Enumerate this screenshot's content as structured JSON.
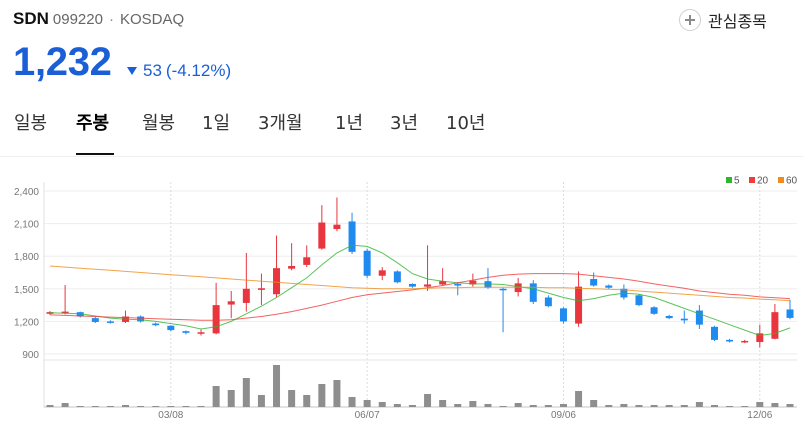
{
  "stock": {
    "name": "SDN",
    "code": "099220",
    "separator": "·",
    "market": "KOSDAQ",
    "price": "1,232",
    "change": "53",
    "change_percent": "(-4.12%)",
    "change_icon": "down-triangle-icon",
    "direction": "down"
  },
  "watchlist_button": {
    "label": "관심종목",
    "icon": "plus-circle-icon"
  },
  "tabs": [
    {
      "label": "일봉",
      "active": false
    },
    {
      "label": "주봉",
      "active": true
    },
    {
      "label": "월봉",
      "active": false
    },
    {
      "label": "1일",
      "active": false
    },
    {
      "label": "3개월",
      "active": false
    },
    {
      "label": "1년",
      "active": false
    },
    {
      "label": "3년",
      "active": false
    },
    {
      "label": "10년",
      "active": false
    }
  ],
  "colors": {
    "price_down": "#1b5fd6",
    "text": "#222222",
    "muted": "#666666",
    "tab_active": "#000000"
  },
  "chart_data": {
    "type": "bar",
    "style": "candlestick",
    "ylim": [
      900,
      2400
    ],
    "y_ticks": [
      2400,
      2100,
      1800,
      1500,
      1200,
      900
    ],
    "y_tick_labels": [
      "2,400",
      "2,100",
      "1,800",
      "1,500",
      "1,200",
      "900"
    ],
    "x_tick_labels": [
      "03/08",
      "06/07",
      "09/06",
      "12/06"
    ],
    "x_tick_index": [
      8,
      21,
      34,
      47
    ],
    "grid": true,
    "legend": {
      "placement": "top-right",
      "items": [
        {
          "name": "5",
          "color": "#2fb52f"
        },
        {
          "name": "20",
          "color": "#f03c3c"
        },
        {
          "name": "60",
          "color": "#f08c1e"
        }
      ]
    },
    "candle_fields": [
      "open",
      "high",
      "low",
      "close"
    ],
    "candles": [
      [
        1270,
        1295,
        1260,
        1285
      ],
      [
        1275,
        1535,
        1265,
        1290
      ],
      [
        1285,
        1290,
        1235,
        1245
      ],
      [
        1230,
        1240,
        1185,
        1195
      ],
      [
        1200,
        1210,
        1180,
        1195
      ],
      [
        1195,
        1300,
        1185,
        1245
      ],
      [
        1245,
        1255,
        1190,
        1200
      ],
      [
        1180,
        1190,
        1155,
        1165
      ],
      [
        1160,
        1165,
        1110,
        1120
      ],
      [
        1110,
        1115,
        1080,
        1095
      ],
      [
        1090,
        1125,
        1070,
        1100
      ],
      [
        1090,
        1555,
        1080,
        1350
      ],
      [
        1355,
        1480,
        1230,
        1385
      ],
      [
        1370,
        1830,
        1290,
        1500
      ],
      [
        1490,
        1640,
        1350,
        1505
      ],
      [
        1450,
        1990,
        1420,
        1690
      ],
      [
        1685,
        1920,
        1670,
        1710
      ],
      [
        1720,
        1900,
        1700,
        1790
      ],
      [
        1870,
        2270,
        1860,
        2110
      ],
      [
        2050,
        2340,
        2030,
        2090
      ],
      [
        2120,
        2200,
        1820,
        1840
      ],
      [
        1850,
        1870,
        1600,
        1620
      ],
      [
        1620,
        1700,
        1580,
        1670
      ],
      [
        1660,
        1670,
        1550,
        1560
      ],
      [
        1545,
        1550,
        1510,
        1520
      ],
      [
        1520,
        1900,
        1480,
        1540
      ],
      [
        1540,
        1690,
        1530,
        1570
      ],
      [
        1545,
        1560,
        1440,
        1530
      ],
      [
        1540,
        1640,
        1520,
        1575
      ],
      [
        1570,
        1690,
        1500,
        1510
      ],
      [
        1500,
        1510,
        1100,
        1490
      ],
      [
        1470,
        1600,
        1430,
        1550
      ],
      [
        1550,
        1580,
        1360,
        1380
      ],
      [
        1420,
        1440,
        1330,
        1340
      ],
      [
        1320,
        1330,
        1180,
        1200
      ],
      [
        1180,
        1660,
        1150,
        1520
      ],
      [
        1590,
        1650,
        1520,
        1530
      ],
      [
        1530,
        1540,
        1500,
        1510
      ],
      [
        1500,
        1540,
        1400,
        1420
      ],
      [
        1440,
        1450,
        1340,
        1350
      ],
      [
        1330,
        1340,
        1260,
        1270
      ],
      [
        1250,
        1260,
        1220,
        1230
      ],
      [
        1225,
        1300,
        1180,
        1210
      ],
      [
        1300,
        1350,
        1130,
        1170
      ],
      [
        1150,
        1160,
        1020,
        1030
      ],
      [
        1030,
        1040,
        1005,
        1015
      ],
      [
        1010,
        1030,
        1000,
        1020
      ],
      [
        1010,
        1170,
        960,
        1090
      ],
      [
        1040,
        1360,
        1035,
        1285
      ],
      [
        1310,
        1400,
        1220,
        1232
      ]
    ],
    "series": [
      {
        "name": "5",
        "values": [
          1280,
          1275,
          1270,
          1250,
          1230,
          1220,
          1215,
          1200,
          1180,
          1160,
          1130,
          1150,
          1200,
          1270,
          1340,
          1420,
          1510,
          1600,
          1720,
          1830,
          1900,
          1890,
          1830,
          1740,
          1640,
          1590,
          1570,
          1555,
          1545,
          1545,
          1540,
          1520,
          1500,
          1460,
          1420,
          1390,
          1410,
          1440,
          1460,
          1450,
          1420,
          1370,
          1320,
          1270,
          1220,
          1170,
          1120,
          1070,
          1090,
          1140
        ]
      },
      {
        "name": "20",
        "values": [
          1260,
          1255,
          1250,
          1245,
          1240,
          1235,
          1230,
          1225,
          1220,
          1215,
          1210,
          1210,
          1215,
          1230,
          1245,
          1265,
          1290,
          1320,
          1350,
          1385,
          1420,
          1445,
          1460,
          1475,
          1490,
          1510,
          1530,
          1555,
          1580,
          1605,
          1625,
          1635,
          1640,
          1640,
          1640,
          1635,
          1620,
          1605,
          1590,
          1570,
          1545,
          1525,
          1505,
          1480,
          1465,
          1450,
          1440,
          1425,
          1418,
          1410
        ]
      },
      {
        "name": "60",
        "values": [
          1710,
          1700,
          1690,
          1680,
          1670,
          1660,
          1650,
          1640,
          1630,
          1620,
          1610,
          1600,
          1590,
          1580,
          1570,
          1560,
          1550,
          1540,
          1530,
          1520,
          1510,
          1505,
          1500,
          1500,
          1500,
          1505,
          1510,
          1510,
          1515,
          1515,
          1515,
          1515,
          1515,
          1510,
          1510,
          1505,
          1500,
          1495,
          1490,
          1480,
          1470,
          1460,
          1450,
          1440,
          1430,
          1420,
          1415,
          1405,
          1400,
          1390
        ]
      }
    ],
    "volume": [
      2,
      4,
      1,
      1,
      1,
      2,
      1,
      1,
      1,
      1,
      1,
      21,
      17,
      29,
      12,
      42,
      17,
      12,
      23,
      27,
      10,
      7,
      5,
      3,
      2,
      13,
      7,
      3,
      6,
      3,
      1,
      4,
      2,
      2,
      3,
      16,
      7,
      2,
      3,
      2,
      2,
      2,
      2,
      5,
      2,
      1,
      1,
      5,
      4,
      3
    ],
    "up_color": "#e8353e",
    "down_color": "#1f8bf0",
    "volume_color": "#8e8e8e"
  }
}
